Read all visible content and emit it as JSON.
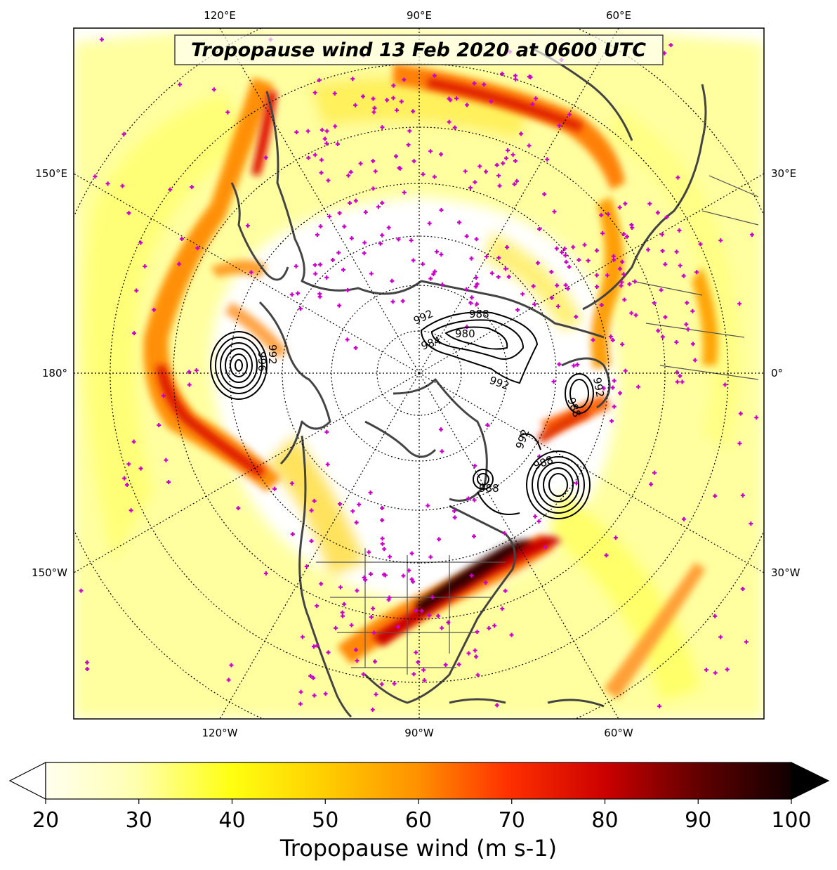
{
  "title": "Tropopause wind 13 Feb 2020 at 0600 UTC",
  "colors": {
    "jet_weak": "#ffff66",
    "jet_mid": "#ff9900",
    "jet_strong": "#cc0000",
    "jet_max": "#220000",
    "stations": "#cc00cc",
    "coastline": "#444444",
    "contours": "#000000"
  },
  "chart_data": {
    "type": "heatmap",
    "projection": "north polar stereographic",
    "variable": "Tropopause wind",
    "units": "m s-1",
    "colorbar": {
      "label": "Tropopause wind (m s-1)",
      "min": 20,
      "max": 100,
      "ticks": [
        "20",
        "30",
        "40",
        "50",
        "60",
        "70",
        "80",
        "90",
        "100"
      ],
      "extend": "both"
    },
    "longitude_labels": {
      "top": [
        "120°E",
        "90°E",
        "60°E"
      ],
      "bottom": [
        "120°W",
        "90°W",
        "60°W"
      ],
      "left": [
        "150°E",
        "180°",
        "150°W"
      ],
      "right": [
        "30°E",
        "0°",
        "30°W"
      ]
    },
    "pressure_contours": [
      {
        "system": "north-pacific-low",
        "labels": [
          "996",
          "992"
        ]
      },
      {
        "system": "arctic-low",
        "labels": [
          "992",
          "988",
          "980",
          "984",
          "992"
        ]
      },
      {
        "system": "norwegian-sea-low",
        "labels": [
          "992",
          "988"
        ]
      },
      {
        "system": "north-atlantic-low",
        "labels": [
          "992",
          "988"
        ]
      },
      {
        "system": "labrador-low",
        "labels": [
          "988"
        ]
      }
    ]
  }
}
